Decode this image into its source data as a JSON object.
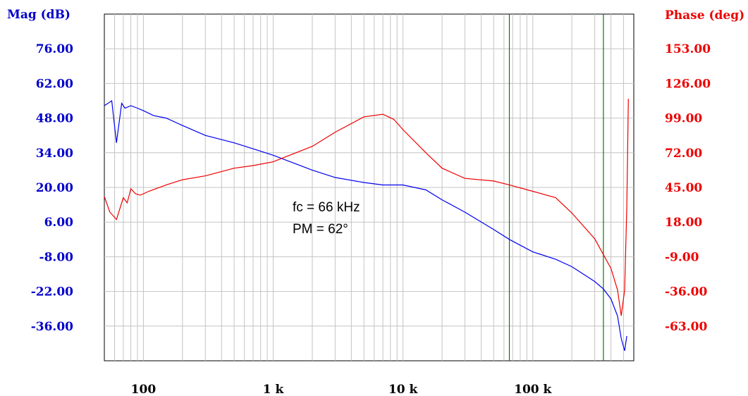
{
  "chart_data": {
    "type": "line",
    "left_axis": {
      "title": "Mag (dB)",
      "ticks": [
        "76.00",
        "62.00",
        "48.00",
        "34.00",
        "20.00",
        "6.00",
        "-8.00",
        "-22.00",
        "-36.00"
      ],
      "tick_values": [
        76,
        62,
        48,
        34,
        20,
        6,
        -8,
        -22,
        -36
      ],
      "ylim": [
        -50,
        90
      ],
      "color": "#0000cc"
    },
    "right_axis": {
      "title": "Phase (deg)",
      "ticks": [
        "153.00",
        "126.00",
        "99.00",
        "72.00",
        "45.00",
        "18.00",
        "-9.00",
        "-36.00",
        "-63.00"
      ],
      "tick_values": [
        153,
        126,
        99,
        72,
        45,
        18,
        -9,
        -36,
        -63
      ],
      "ylim": [
        -90,
        180
      ],
      "color": "#ee0000"
    },
    "x_axis": {
      "scale": "log",
      "ticks": [
        "100",
        "1 k",
        "10 k",
        "100 k"
      ],
      "tick_values": [
        100,
        1000,
        10000,
        100000
      ],
      "xlim": [
        50,
        600000
      ]
    },
    "grid": true,
    "series": [
      {
        "axis": "left",
        "color": "#0000ee",
        "x": [
          50,
          57,
          62,
          68,
          72,
          80,
          90,
          100,
          120,
          150,
          200,
          300,
          500,
          1000,
          2000,
          3000,
          5000,
          7000,
          10000,
          15000,
          20000,
          30000,
          50000,
          66000,
          100000,
          150000,
          200000,
          300000,
          350000,
          400000,
          450000,
          480000,
          510000,
          530000
        ],
        "y": [
          53,
          55,
          38,
          54,
          52,
          53,
          52,
          51,
          49,
          48,
          45,
          41,
          38,
          33,
          27,
          24,
          22,
          21,
          21,
          19,
          15,
          10,
          3,
          -1,
          -6,
          -9,
          -12,
          -18,
          -21,
          -25,
          -32,
          -41,
          -46,
          -40
        ]
      },
      {
        "axis": "right",
        "color": "#ee0000",
        "x": [
          50,
          55,
          62,
          70,
          75,
          80,
          87,
          95,
          110,
          150,
          200,
          300,
          500,
          700,
          1000,
          2000,
          3000,
          5000,
          7000,
          8500,
          10000,
          15000,
          20000,
          30000,
          50000,
          66000,
          100000,
          150000,
          200000,
          300000,
          400000,
          450000,
          480000,
          510000,
          530000,
          545000
        ],
        "y": [
          38,
          26,
          20,
          37,
          33,
          44,
          40,
          39,
          42,
          47,
          51,
          54,
          60,
          62,
          65,
          77,
          88,
          100,
          102,
          98,
          90,
          72,
          60,
          52,
          50,
          47,
          42,
          37,
          25,
          5,
          -18,
          -35,
          -55,
          -35,
          30,
          114
        ]
      }
    ],
    "markers_x": [
      66000,
      350000
    ],
    "marker_color": "#008000",
    "annotations": [
      "fc = 66 kHz",
      "PM = 62°"
    ]
  }
}
